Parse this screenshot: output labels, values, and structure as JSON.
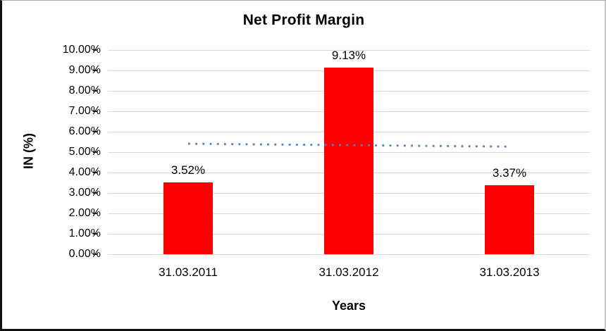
{
  "chart_data": {
    "type": "bar",
    "title": "Net Profit Margin",
    "xlabel": "Years",
    "ylabel": "IN (%)",
    "categories": [
      "31.03.2011",
      "31.03.2012",
      "31.03.2013"
    ],
    "values": [
      3.52,
      9.13,
      3.37
    ],
    "data_labels": [
      "3.52%",
      "9.13%",
      "3.37%"
    ],
    "ylim": [
      0,
      10
    ],
    "ytick_labels": [
      "0.00%",
      "1.00%",
      "2.00%",
      "3.00%",
      "4.00%",
      "5.00%",
      "6.00%",
      "7.00%",
      "8.00%",
      "9.00%",
      "10.00%"
    ],
    "grid": true,
    "legend": "none",
    "colors": {
      "bar": "#FF0000",
      "gridline": "#D9D9D9",
      "trendline": "#4F81BD",
      "text": "#000000"
    },
    "trendline": {
      "style": "dotted-linear",
      "y_start": 5.41,
      "y_end": 5.27
    }
  }
}
